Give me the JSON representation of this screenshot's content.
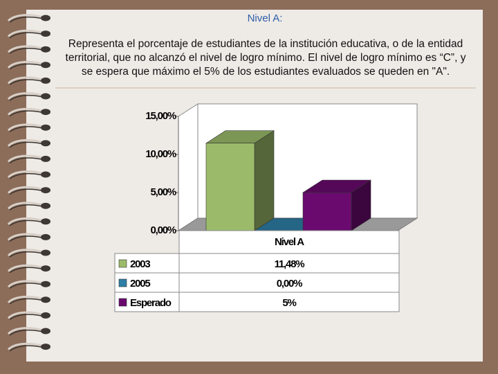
{
  "title": "Nivel A:",
  "description": "Representa el porcentaje de estudiantes de la institución educativa, o de la entidad territorial, que no alcanzó el nivel de logro mínimo. El nivel de logro mínimo es “C”, y se espera que máximo el 5% de los estudiantes evaluados se queden en \"A\".",
  "chart_data": {
    "type": "bar3d",
    "categories": [
      "Nivel A"
    ],
    "series": [
      {
        "name": "2003",
        "color": "#9bbb6a",
        "values": [
          11.48
        ],
        "value_labels": [
          "11,48%"
        ]
      },
      {
        "name": "2005",
        "color": "#2e7ea6",
        "values": [
          0
        ],
        "value_labels": [
          "0,00%"
        ]
      },
      {
        "name": "Esperado",
        "color": "#6a0a6e",
        "values": [
          5
        ],
        "value_labels": [
          "5%"
        ]
      }
    ],
    "ylim": [
      0,
      15
    ],
    "yticks": [
      {
        "value": 0,
        "label": "0,00%"
      },
      {
        "value": 5,
        "label": "5,00%"
      },
      {
        "value": 10,
        "label": "10,00%"
      },
      {
        "value": 15,
        "label": "15,00%"
      }
    ]
  }
}
